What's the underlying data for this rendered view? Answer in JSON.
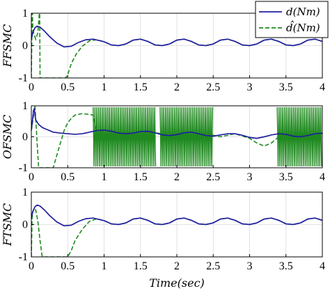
{
  "chart_data": [
    {
      "type": "line",
      "ylabel": "FFSMC",
      "xlabel": "",
      "xlim": [
        0,
        4
      ],
      "ylim": [
        -1,
        1
      ],
      "xticks": [
        "0",
        "0.5",
        "1",
        "1.5",
        "2",
        "2.5",
        "3",
        "3.5",
        "4"
      ],
      "yticks": [
        "1",
        "0",
        "-1"
      ],
      "grid": true,
      "legend": "top-right",
      "series": [
        {
          "name": "d(Nm)",
          "color": "#1f1f9e",
          "style": "solid",
          "x": [
            0,
            0.02,
            0.05,
            0.08,
            0.12,
            0.18,
            0.25,
            0.35,
            0.45,
            0.55,
            0.65,
            0.75,
            0.85,
            1.0,
            1.1,
            1.2,
            1.3,
            1.4,
            1.5,
            1.6,
            1.7,
            1.8,
            1.9,
            2.0,
            2.1,
            2.2,
            2.3,
            2.4,
            2.5,
            2.6,
            2.7,
            2.8,
            2.9,
            3.0,
            3.1,
            3.2,
            3.3,
            3.4,
            3.5,
            3.6,
            3.7,
            3.8,
            3.9,
            4.0
          ],
          "y": [
            0.2,
            0.4,
            0.55,
            0.6,
            0.57,
            0.45,
            0.28,
            0.08,
            -0.04,
            -0.02,
            0.1,
            0.18,
            0.2,
            0.12,
            0.02,
            0.0,
            0.05,
            0.17,
            0.2,
            0.13,
            0.02,
            0.0,
            0.05,
            0.17,
            0.2,
            0.13,
            0.02,
            0.0,
            0.05,
            0.17,
            0.2,
            0.13,
            0.02,
            0.0,
            0.05,
            0.17,
            0.2,
            0.13,
            0.02,
            0.0,
            0.05,
            0.17,
            0.2,
            0.13
          ]
        },
        {
          "name": "d̂(Nm)",
          "color": "#1f8a1f",
          "style": "dashed",
          "x": [
            0,
            0.01,
            0.015,
            0.02,
            0.03,
            0.06,
            0.09,
            0.11,
            0.115,
            0.12,
            0.14,
            0.2,
            0.3,
            0.4,
            0.47,
            0.5,
            0.55,
            0.62,
            0.7,
            0.8,
            0.9,
            1.0,
            1.1,
            1.2,
            1.3,
            1.4,
            1.5,
            1.6,
            1.7,
            1.8,
            1.9,
            2.0,
            2.1,
            2.2,
            2.3,
            2.4,
            2.5,
            2.6,
            2.7,
            2.8,
            2.9,
            3.0,
            3.1,
            3.2,
            3.3,
            3.4,
            3.5,
            3.6,
            3.7,
            3.8,
            3.9,
            4.0
          ],
          "y": [
            -1,
            1,
            1,
            0.6,
            0.4,
            0.2,
            0.4,
            1,
            1,
            -1,
            -1,
            -1,
            -1,
            -1,
            -1,
            -0.9,
            -0.55,
            -0.25,
            -0.02,
            0.15,
            0.18,
            0.12,
            0.02,
            0.0,
            0.05,
            0.17,
            0.2,
            0.13,
            0.02,
            0.0,
            0.05,
            0.17,
            0.2,
            0.13,
            0.02,
            0.0,
            0.05,
            0.17,
            0.2,
            0.13,
            0.02,
            0.0,
            0.05,
            0.17,
            0.2,
            0.13,
            0.02,
            0.0,
            0.05,
            0.17,
            0.2,
            0.13
          ]
        }
      ]
    },
    {
      "type": "line",
      "ylabel": "OFSMC",
      "xlabel": "",
      "xlim": [
        0,
        4
      ],
      "ylim": [
        -1,
        1
      ],
      "xticks": [
        "0",
        "0.5",
        "1",
        "1.5",
        "2",
        "2.5",
        "3",
        "3.5",
        "4"
      ],
      "yticks": [
        "1",
        "0",
        "-1"
      ],
      "grid": true,
      "series": [
        {
          "color": "#1f1f9e",
          "style": "solid",
          "x": [
            0,
            0.03,
            0.04,
            0.06,
            0.1,
            0.15,
            0.2,
            0.3,
            0.4,
            0.5,
            0.6,
            0.7,
            0.8,
            0.9,
            1.0,
            1.1,
            1.2,
            1.3,
            1.4,
            1.5,
            1.6,
            1.7,
            1.8,
            1.9,
            2.0,
            2.1,
            2.2,
            2.3,
            2.4,
            2.5,
            2.6,
            2.7,
            2.8,
            2.9,
            3.0,
            3.1,
            3.2,
            3.3,
            3.4,
            3.5,
            3.6,
            3.7,
            3.8,
            3.9,
            4.0
          ],
          "y": [
            0.2,
            0.85,
            0.9,
            0.55,
            0.4,
            0.3,
            0.25,
            0.15,
            0.12,
            0.1,
            0.08,
            0.1,
            0.15,
            0.2,
            0.22,
            0.18,
            0.12,
            0.1,
            0.12,
            0.17,
            0.18,
            0.13,
            0.06,
            0.04,
            0.07,
            0.13,
            0.15,
            0.1,
            0.04,
            0.02,
            0.06,
            0.1,
            0.1,
            0.05,
            -0.02,
            -0.05,
            0.0,
            0.06,
            0.1,
            0.08,
            0.02,
            0.0,
            0.04,
            0.1,
            0.12
          ]
        },
        {
          "color": "#1f8a1f",
          "style": "dashed",
          "x": [
            0,
            0.05,
            0.1,
            0.15,
            0.2,
            0.25,
            0.3,
            0.35,
            0.4,
            0.45,
            0.5,
            0.55,
            0.6,
            0.7,
            0.8,
            0.85,
            0.9,
            1.0,
            1.2,
            1.4,
            1.6,
            1.8,
            2.0,
            2.2,
            2.4,
            2.6,
            2.8,
            3.0,
            3.1,
            3.2,
            3.3,
            3.4,
            3.6,
            3.8,
            4.0
          ],
          "y": [
            0.2,
            1,
            -1,
            -1,
            -1,
            -1,
            -1,
            -0.6,
            -0.2,
            0.2,
            0.45,
            0.6,
            0.7,
            0.75,
            0.72,
            0.7,
            0.1,
            0.2,
            0.15,
            0.12,
            0.15,
            0.1,
            0.08,
            0.05,
            0.1,
            0.0,
            0.1,
            -0.05,
            -0.2,
            -0.3,
            -0.2,
            0.0,
            0.1,
            0.05,
            0.1
          ]
        }
      ],
      "chattering_bands": [
        [
          0.85,
          1.72
        ],
        [
          1.77,
          2.5
        ],
        [
          3.38,
          4.0
        ]
      ]
    },
    {
      "type": "line",
      "ylabel": "FTSMC",
      "xlabel": "Time(sec)",
      "xlim": [
        0,
        4
      ],
      "ylim": [
        -1,
        1
      ],
      "xticks": [
        "0",
        "0.5",
        "1",
        "1.5",
        "2",
        "2.5",
        "3",
        "3.5",
        "4"
      ],
      "yticks": [
        "1",
        "0",
        "-1"
      ],
      "grid": true,
      "series": [
        {
          "color": "#1f1f9e",
          "style": "solid",
          "x": [
            0,
            0.02,
            0.05,
            0.08,
            0.12,
            0.18,
            0.25,
            0.35,
            0.45,
            0.55,
            0.65,
            0.75,
            0.85,
            1.0,
            1.1,
            1.2,
            1.3,
            1.4,
            1.5,
            1.6,
            1.7,
            1.8,
            1.9,
            2.0,
            2.1,
            2.2,
            2.3,
            2.4,
            2.5,
            2.6,
            2.7,
            2.8,
            2.9,
            3.0,
            3.1,
            3.2,
            3.3,
            3.4,
            3.5,
            3.6,
            3.7,
            3.8,
            3.9,
            4.0
          ],
          "y": [
            0.2,
            0.4,
            0.55,
            0.6,
            0.57,
            0.45,
            0.28,
            0.08,
            -0.04,
            -0.02,
            0.1,
            0.18,
            0.2,
            0.12,
            0.02,
            0.0,
            0.05,
            0.17,
            0.2,
            0.13,
            0.02,
            0.0,
            0.05,
            0.17,
            0.2,
            0.13,
            0.02,
            0.0,
            0.05,
            0.17,
            0.2,
            0.13,
            0.02,
            0.0,
            0.05,
            0.17,
            0.2,
            0.13,
            0.02,
            0.0,
            0.05,
            0.17,
            0.2,
            0.13
          ]
        },
        {
          "color": "#1f8a1f",
          "style": "dashed",
          "x": [
            0,
            0.01,
            0.02,
            0.04,
            0.06,
            0.09,
            0.12,
            0.15,
            0.16,
            0.2,
            0.3,
            0.4,
            0.5,
            0.55,
            0.6,
            0.7,
            0.8,
            0.9,
            1.0,
            1.1,
            1.2,
            1.3,
            1.4,
            1.5,
            1.6,
            1.7,
            1.8,
            1.9,
            2.0,
            2.1,
            2.2,
            2.3,
            2.4,
            2.5,
            2.6,
            2.7,
            2.8,
            2.9,
            3.0,
            3.1,
            3.2,
            3.3,
            3.4,
            3.5,
            3.6,
            3.7,
            3.8,
            3.9,
            4.0
          ],
          "y": [
            -1,
            0.2,
            0.4,
            0.5,
            0.45,
            0.1,
            -0.5,
            -1,
            -1,
            -1,
            -1,
            -1,
            -1,
            -0.8,
            -0.5,
            -0.15,
            0.1,
            0.18,
            0.12,
            0.02,
            0.0,
            0.05,
            0.17,
            0.2,
            0.13,
            0.02,
            0.0,
            0.05,
            0.17,
            0.2,
            0.13,
            0.02,
            0.0,
            0.05,
            0.17,
            0.2,
            0.13,
            0.02,
            0.0,
            0.05,
            0.17,
            0.2,
            0.13,
            0.02,
            0.0,
            0.05,
            0.17,
            0.2,
            0.13
          ]
        }
      ]
    }
  ]
}
